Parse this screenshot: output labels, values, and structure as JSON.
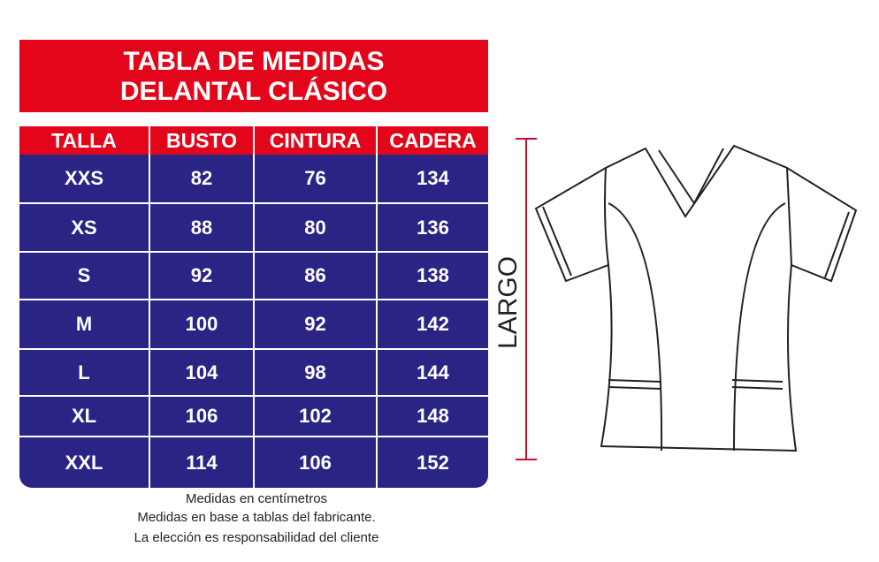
{
  "header": {
    "title": [
      "TABLA DE MEDIDAS",
      "DELANTAL CLÁSICO"
    ]
  },
  "table": {
    "columns": [
      "TALLA",
      "BUSTO",
      "CINTURA",
      "CADERA"
    ],
    "rows": [
      [
        "XXS",
        82,
        76,
        134
      ],
      [
        "XS",
        88,
        80,
        136
      ],
      [
        "S",
        92,
        86,
        138
      ],
      [
        "M",
        100,
        92,
        142
      ],
      [
        "L",
        104,
        98,
        144
      ],
      [
        "XL",
        106,
        102,
        148
      ],
      [
        "XXL",
        114,
        106,
        152
      ]
    ]
  },
  "notes": [
    "Medidas en centímetros",
    "Medidas en base a tablas del fabricante.",
    "La elección es responsabilidad del cliente"
  ],
  "diagram": {
    "label": "LARGO"
  }
}
